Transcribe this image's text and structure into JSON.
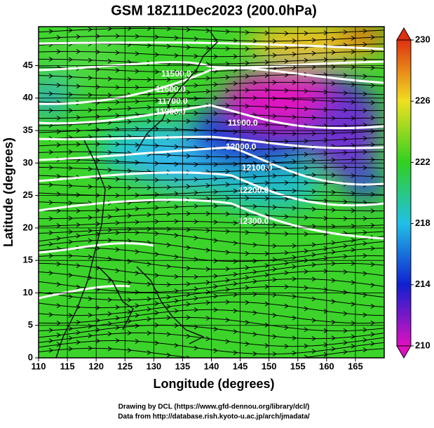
{
  "title": "GSM 18Z11Dec2023 (200.0hPa)",
  "x_axis": {
    "label": "Longitude (degrees)",
    "lim": [
      110,
      170
    ],
    "ticks": [
      110,
      115,
      120,
      125,
      130,
      135,
      140,
      145,
      150,
      155,
      160,
      165
    ]
  },
  "y_axis": {
    "label": "Latitude  (degrees)",
    "lim": [
      0,
      51
    ],
    "ticks": [
      0,
      5,
      10,
      15,
      20,
      25,
      30,
      35,
      40,
      45
    ]
  },
  "colorbar": {
    "lim": [
      210,
      230
    ],
    "ticks": [
      210,
      214,
      218,
      222,
      226,
      230
    ],
    "colors": [
      "#e010c0",
      "#1020d0",
      "#20c0e8",
      "#30d020",
      "#f0e020",
      "#e03010"
    ]
  },
  "contour_labels": [
    "11500.0",
    "11600.0",
    "11700.0",
    "11800.0",
    "11900.0",
    "12000.0",
    "12100.0",
    "12200.0",
    "12300.0"
  ],
  "credits": [
    "Drawing by DCL (https://www.gfd-dennou.org/library/dcl/)",
    "Data from http://database.rish.kyoto-u.ac.jp/arch/jmadata/"
  ]
}
